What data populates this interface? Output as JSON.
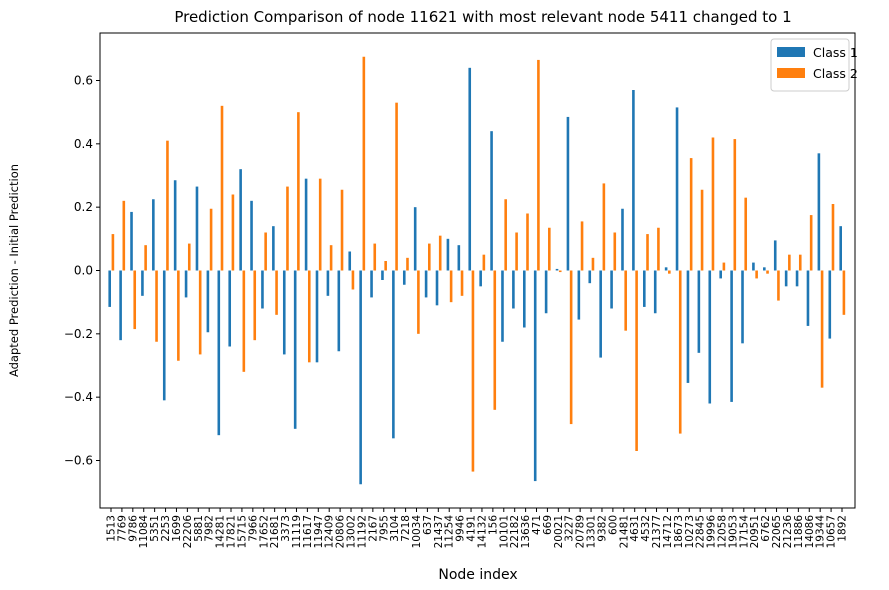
{
  "chart_data": {
    "type": "bar",
    "title": "Prediction Comparison of node 11621 with most relevant node 5411 changed to 1",
    "xlabel": "Node index",
    "ylabel": "Adapted Prediction - Initial Prediction",
    "ylim": [
      -0.75,
      0.75
    ],
    "yticks": [
      -0.6,
      -0.4,
      -0.2,
      0.0,
      0.2,
      0.4,
      0.6
    ],
    "ytick_labels": [
      "−0.6",
      "−0.4",
      "−0.2",
      "0.0",
      "0.2",
      "0.4",
      "0.6"
    ],
    "grid": false,
    "legend_position": "top-right",
    "colors": {
      "Class 1": "#1f77b4",
      "Class 2": "#ff7f0e"
    },
    "categories": [
      "1513",
      "7769",
      "9786",
      "11084",
      "5351",
      "2253",
      "1699",
      "22206",
      "5881",
      "7982",
      "14281",
      "17821",
      "15715",
      "7966",
      "17652",
      "21681",
      "3373",
      "11119",
      "11617",
      "11947",
      "12409",
      "20806",
      "13002",
      "11192",
      "2167",
      "7955",
      "3104",
      "7218",
      "10034",
      "637",
      "21437",
      "11254",
      "9946",
      "4191",
      "14132",
      "156",
      "10101",
      "22182",
      "13636",
      "471",
      "669",
      "20021",
      "3227",
      "20789",
      "13301",
      "9382",
      "600",
      "21481",
      "4631",
      "4532",
      "21377",
      "14712",
      "18673",
      "10273",
      "22845",
      "19996",
      "12058",
      "19053",
      "17154",
      "20951",
      "6762",
      "22065",
      "21236",
      "11886",
      "14086",
      "19344",
      "10657",
      "1892"
    ],
    "series": [
      {
        "name": "Class 1",
        "values": [
          -0.115,
          -0.22,
          0.185,
          -0.08,
          0.225,
          -0.41,
          0.285,
          -0.085,
          0.265,
          -0.195,
          -0.52,
          -0.24,
          0.32,
          0.22,
          -0.12,
          0.14,
          -0.265,
          -0.5,
          0.29,
          -0.29,
          -0.08,
          -0.255,
          0.06,
          -0.675,
          -0.085,
          -0.03,
          -0.53,
          -0.045,
          0.2,
          -0.085,
          -0.11,
          0.1,
          0.08,
          0.64,
          -0.05,
          0.44,
          -0.225,
          -0.12,
          -0.18,
          -0.665,
          -0.135,
          0.005,
          0.485,
          -0.155,
          -0.04,
          -0.275,
          -0.12,
          0.195,
          0.57,
          -0.115,
          -0.135,
          0.01,
          0.515,
          -0.355,
          -0.26,
          -0.42,
          -0.025,
          -0.415,
          -0.23,
          0.025,
          0.01,
          0.095,
          -0.05,
          -0.05,
          -0.175,
          0.37,
          -0.215,
          0.14
        ]
      },
      {
        "name": "Class 2",
        "values": [
          0.115,
          0.22,
          -0.185,
          0.08,
          -0.225,
          0.41,
          -0.285,
          0.085,
          -0.265,
          0.195,
          0.52,
          0.24,
          -0.32,
          -0.22,
          0.12,
          -0.14,
          0.265,
          0.5,
          -0.29,
          0.29,
          0.08,
          0.255,
          -0.06,
          0.675,
          0.085,
          0.03,
          0.53,
          0.04,
          -0.2,
          0.085,
          0.11,
          -0.1,
          -0.08,
          -0.635,
          0.05,
          -0.44,
          0.225,
          0.12,
          0.18,
          0.665,
          0.135,
          -0.005,
          -0.485,
          0.155,
          0.04,
          0.275,
          0.12,
          -0.19,
          -0.57,
          0.115,
          0.135,
          -0.01,
          -0.515,
          0.355,
          0.255,
          0.42,
          0.025,
          0.415,
          0.23,
          -0.025,
          -0.01,
          -0.095,
          0.05,
          0.05,
          0.175,
          -0.37,
          0.21,
          -0.14
        ]
      }
    ]
  }
}
